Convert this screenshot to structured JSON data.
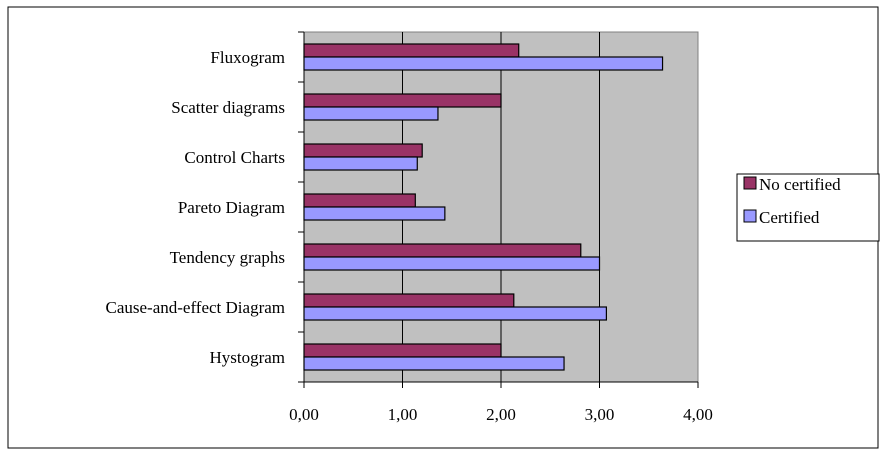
{
  "chart_data": {
    "type": "bar",
    "orientation": "horizontal",
    "categories": [
      "Fluxogram",
      "Scatter diagrams",
      "Control Charts",
      "Pareto Diagram",
      "Tendency graphs",
      "Cause-and-effect Diagram",
      "Hystogram"
    ],
    "series": [
      {
        "name": "No certified",
        "color": "#993366",
        "values": [
          2.18,
          2.0,
          1.2,
          1.13,
          2.81,
          2.13,
          2.0
        ]
      },
      {
        "name": "Certified",
        "color": "#9999ff",
        "values": [
          3.64,
          1.36,
          1.15,
          1.43,
          3.0,
          3.07,
          2.64
        ]
      }
    ],
    "x_ticks": [
      "0,00",
      "1,00",
      "2,00",
      "3,00",
      "4,00"
    ],
    "xlim": [
      0,
      4
    ],
    "grid": true,
    "plot_background": "#c0c0c0",
    "legend_position": "right"
  }
}
